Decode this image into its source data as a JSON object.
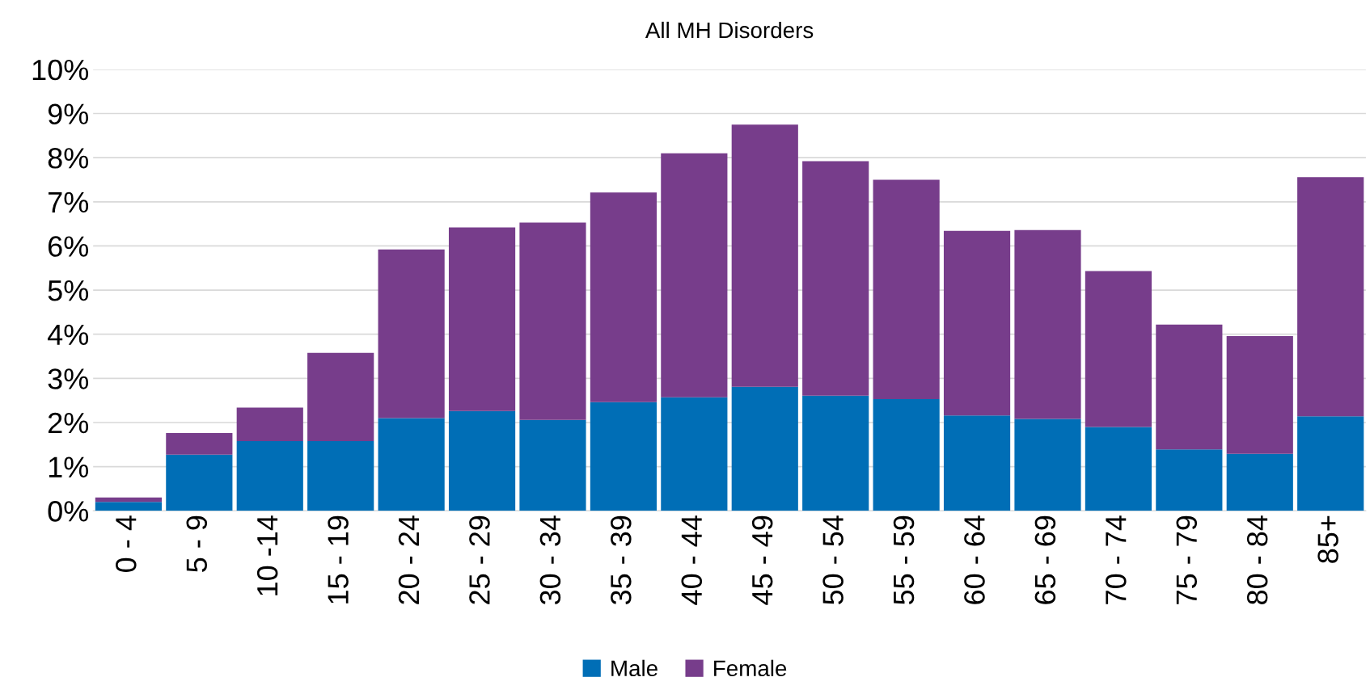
{
  "chart_data": {
    "type": "bar",
    "title": "All MH Disorders",
    "stacked": true,
    "categories": [
      "0 - 4",
      "5 - 9",
      "10 -14",
      "15 - 19",
      "20 - 24",
      "25 - 29",
      "30 - 34",
      "35 - 39",
      "40 - 44",
      "45 - 49",
      "50 - 54",
      "55 - 59",
      "60 - 64",
      "65 - 69",
      "70 - 74",
      "75 - 79",
      "80 - 84",
      "85+"
    ],
    "series": [
      {
        "name": "Male",
        "color": "#006eb6",
        "values": [
          0.2,
          1.27,
          1.58,
          1.58,
          2.1,
          2.26,
          2.06,
          2.46,
          2.57,
          2.81,
          2.61,
          2.53,
          2.16,
          2.08,
          1.9,
          1.39,
          1.29,
          2.14
        ]
      },
      {
        "name": "Female",
        "color": "#773d8b",
        "values": [
          0.1,
          0.49,
          0.76,
          2.0,
          3.82,
          4.16,
          4.47,
          4.75,
          5.53,
          5.94,
          5.31,
          4.97,
          4.18,
          4.28,
          3.53,
          2.83,
          2.67,
          5.42
        ]
      }
    ],
    "ylim": [
      0,
      10
    ],
    "yticks": [
      {
        "value": 0,
        "label": "0%"
      },
      {
        "value": 1,
        "label": "1%"
      },
      {
        "value": 2,
        "label": "2%"
      },
      {
        "value": 3,
        "label": "3%"
      },
      {
        "value": 4,
        "label": "4%"
      },
      {
        "value": 5,
        "label": "5%"
      },
      {
        "value": 6,
        "label": "6%"
      },
      {
        "value": 7,
        "label": "7%"
      },
      {
        "value": 8,
        "label": "8%"
      },
      {
        "value": 9,
        "label": "9%"
      },
      {
        "value": 10,
        "label": "10%"
      }
    ],
    "grid": "y",
    "legend": "bottom"
  }
}
